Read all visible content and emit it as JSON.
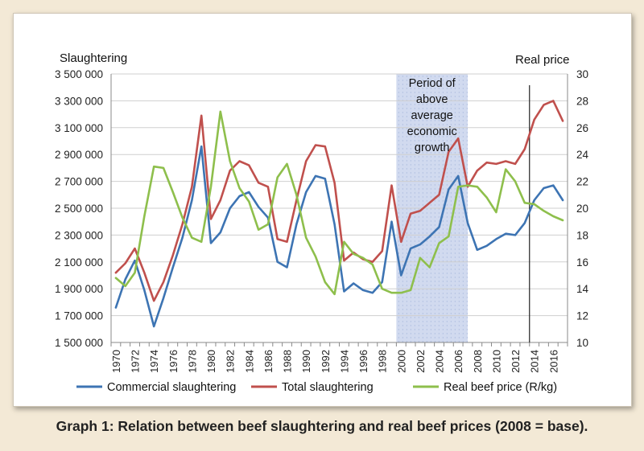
{
  "colors": {
    "commercial": "#3d74b3",
    "total": "#c0504d",
    "price": "#8ebf4c",
    "shade": "#c9d4ec",
    "grid": "#cfcfcf",
    "background": "#f3e9d6"
  },
  "caption": "Graph 1: Relation between beef slaughtering and real beef prices (2008 = base).",
  "chart_data": {
    "type": "line",
    "left_axis_label": "Slaughtering",
    "right_axis_label": "Real price",
    "ylim_left": [
      1500000,
      3500000
    ],
    "ylim_right": [
      10,
      30
    ],
    "xlim": [
      1970,
      2017
    ],
    "y_left_ticks": [
      "1 500 000",
      "1 700 000",
      "1 900 000",
      "2 100 000",
      "2 300 000",
      "2 500 000",
      "2 700 000",
      "2 900 000",
      "3 100 000",
      "3 300 000",
      "3 500 000"
    ],
    "y_right_ticks": [
      "10",
      "12",
      "14",
      "16",
      "18",
      "20",
      "22",
      "24",
      "26",
      "28",
      "30"
    ],
    "x_tick_labels": [
      "1970",
      "1972",
      "1974",
      "1976",
      "1978",
      "1980",
      "1982",
      "1984",
      "1986",
      "1988",
      "1990",
      "1992",
      "1994",
      "1996",
      "1998",
      "2000",
      "2002",
      "2004",
      "2006",
      "2008",
      "2010",
      "2012",
      "2014",
      "2016"
    ],
    "grid": "horizontal",
    "legend_position": "bottom",
    "shaded_region": {
      "from": 1999.5,
      "to": 2007,
      "label": "Period of above average economic growth"
    },
    "vertical_marker": 2013.5,
    "series": [
      {
        "name": "Commercial slaughtering",
        "axis": "left",
        "color": "#3d74b3",
        "x": [
          1970,
          1971,
          1972,
          1973,
          1974,
          1975,
          1976,
          1977,
          1978,
          1979,
          1980,
          1981,
          1982,
          1983,
          1984,
          1985,
          1986,
          1987,
          1988,
          1989,
          1990,
          1991,
          1992,
          1993,
          1994,
          1995,
          1996,
          1997,
          1998,
          1999,
          2000,
          2001,
          2002,
          2003,
          2004,
          2005,
          2006,
          2007,
          2008,
          2009,
          2010,
          2011,
          2012,
          2013,
          2014,
          2015,
          2016,
          2017
        ],
        "values": [
          1760000,
          1970000,
          2110000,
          1890000,
          1620000,
          1830000,
          2060000,
          2280000,
          2560000,
          2960000,
          2240000,
          2320000,
          2500000,
          2590000,
          2620000,
          2510000,
          2430000,
          2100000,
          2060000,
          2380000,
          2620000,
          2740000,
          2720000,
          2380000,
          1880000,
          1940000,
          1890000,
          1870000,
          1950000,
          2400000,
          2000000,
          2200000,
          2230000,
          2290000,
          2360000,
          2640000,
          2740000,
          2390000,
          2190000,
          2220000,
          2270000,
          2310000,
          2300000,
          2390000,
          2560000,
          2650000,
          2670000,
          2560000
        ]
      },
      {
        "name": "Total slaughtering",
        "axis": "left",
        "color": "#c0504d",
        "x": [
          1970,
          1971,
          1972,
          1973,
          1974,
          1975,
          1976,
          1977,
          1978,
          1979,
          1980,
          1981,
          1982,
          1983,
          1984,
          1985,
          1986,
          1987,
          1988,
          1989,
          1990,
          1991,
          1992,
          1993,
          1994,
          1995,
          1996,
          1997,
          1998,
          1999,
          2000,
          2001,
          2002,
          2003,
          2004,
          2005,
          2006,
          2007,
          2008,
          2009,
          2010,
          2011,
          2012,
          2013,
          2014,
          2015,
          2016,
          2017
        ],
        "values": [
          2020000,
          2090000,
          2200000,
          2020000,
          1810000,
          1950000,
          2150000,
          2380000,
          2660000,
          3190000,
          2420000,
          2560000,
          2780000,
          2850000,
          2820000,
          2690000,
          2660000,
          2270000,
          2250000,
          2560000,
          2850000,
          2970000,
          2960000,
          2690000,
          2110000,
          2170000,
          2120000,
          2100000,
          2180000,
          2670000,
          2250000,
          2460000,
          2480000,
          2540000,
          2600000,
          2920000,
          3020000,
          2660000,
          2780000,
          2840000,
          2830000,
          2850000,
          2830000,
          2940000,
          3160000,
          3270000,
          3300000,
          3150000
        ]
      },
      {
        "name": "Real beef price (R/kg)",
        "axis": "right",
        "color": "#8ebf4c",
        "x": [
          1970,
          1971,
          1972,
          1973,
          1974,
          1975,
          1976,
          1977,
          1978,
          1979,
          1980,
          1981,
          1982,
          1983,
          1984,
          1985,
          1986,
          1987,
          1988,
          1989,
          1990,
          1991,
          1992,
          1993,
          1994,
          1995,
          1996,
          1997,
          1998,
          1999,
          2000,
          2001,
          2002,
          2003,
          2004,
          2005,
          2006,
          2007,
          2008,
          2009,
          2010,
          2011,
          2012,
          2013,
          2014,
          2015,
          2016,
          2017
        ],
        "values": [
          14.8,
          14.2,
          15.2,
          19.4,
          23.1,
          23.0,
          21.2,
          19.3,
          17.8,
          17.5,
          21.6,
          27.2,
          23.5,
          21.5,
          20.5,
          18.4,
          18.8,
          22.3,
          23.3,
          21.0,
          17.8,
          16.4,
          14.5,
          13.6,
          17.5,
          16.6,
          16.3,
          15.8,
          14.0,
          13.7,
          13.7,
          13.9,
          16.3,
          15.6,
          17.4,
          17.9,
          21.6,
          21.7,
          21.6,
          20.8,
          19.7,
          22.9,
          22.0,
          20.4,
          20.3,
          19.8,
          19.4,
          19.1
        ]
      }
    ]
  }
}
